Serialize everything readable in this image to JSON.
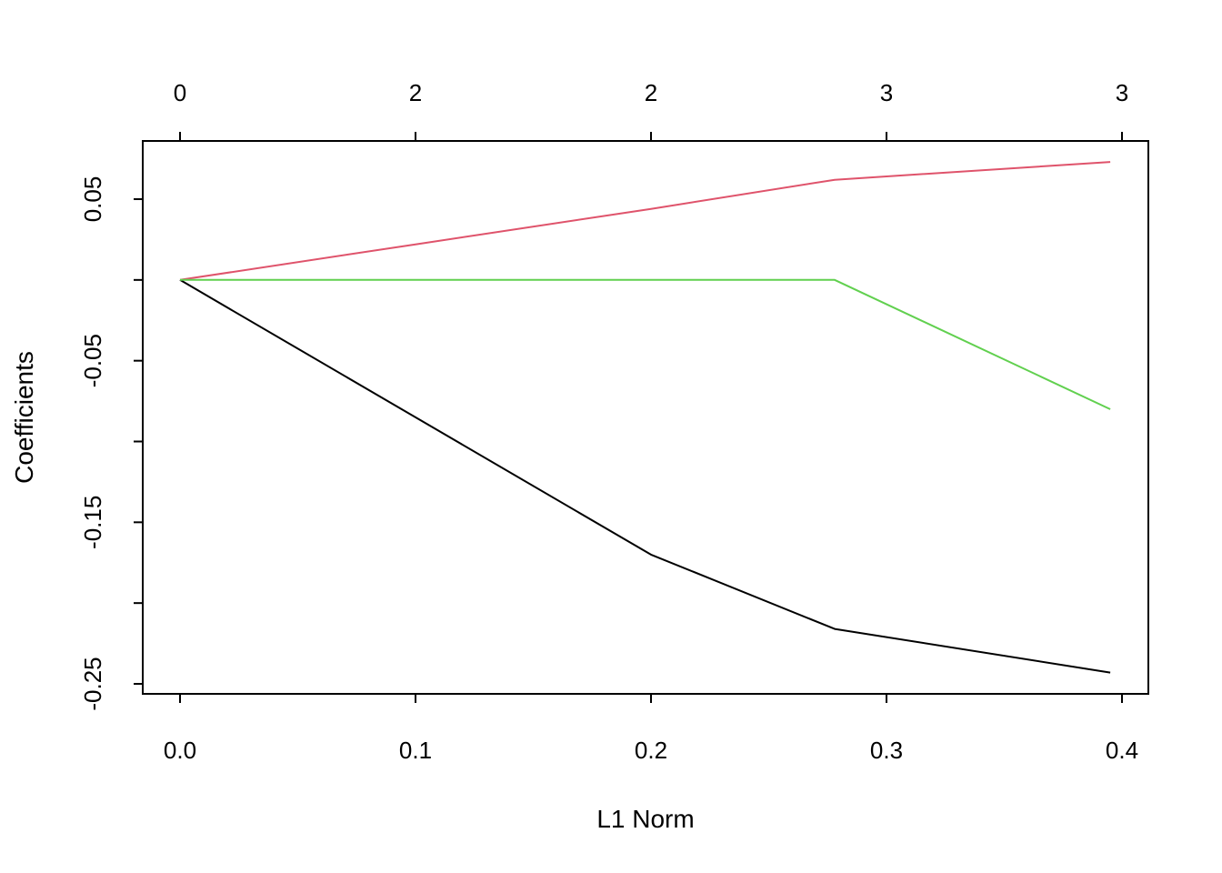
{
  "chart_data": {
    "type": "line",
    "xlabel": "L1 Norm",
    "ylabel": "Coefficients",
    "xlim": [
      0,
      0.4
    ],
    "ylim": [
      -0.25,
      0.05
    ],
    "x_ticks": [
      0.0,
      0.1,
      0.2,
      0.3,
      0.4
    ],
    "x_tick_labels": [
      "0.0",
      "0.1",
      "0.2",
      "0.3",
      "0.4"
    ],
    "y_ticks": [
      -0.25,
      -0.2,
      -0.15,
      -0.1,
      -0.05,
      0.0,
      0.05
    ],
    "y_tick_labels": [
      "-0.25",
      "",
      "-0.15",
      "",
      "-0.05",
      "",
      "0.05"
    ],
    "top_axis": {
      "positions": [
        0.0,
        0.1,
        0.2,
        0.3,
        0.4
      ],
      "labels": [
        "0",
        "2",
        "2",
        "3",
        "3"
      ]
    },
    "grid": false,
    "series": [
      {
        "color": "#000000",
        "x": [
          0.0,
          0.1,
          0.2,
          0.278,
          0.395
        ],
        "y": [
          0.0,
          -0.085,
          -0.17,
          -0.216,
          -0.243
        ]
      },
      {
        "color": "#DF536B",
        "x": [
          0.0,
          0.1,
          0.2,
          0.278,
          0.395
        ],
        "y": [
          0.0,
          0.022,
          0.044,
          0.062,
          0.073
        ]
      },
      {
        "color": "#61D04F",
        "x": [
          0.0,
          0.1,
          0.2,
          0.278,
          0.395
        ],
        "y": [
          0.0,
          0.0,
          0.0,
          0.0,
          -0.08
        ]
      }
    ]
  }
}
